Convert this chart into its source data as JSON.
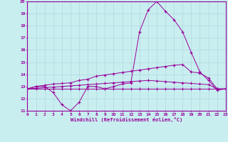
{
  "xlabel": "Windchill (Refroidissement éolien,°C)",
  "xlim": [
    0,
    23
  ],
  "ylim": [
    11,
    20
  ],
  "yticks": [
    11,
    12,
    13,
    14,
    15,
    16,
    17,
    18,
    19,
    20
  ],
  "xticks": [
    0,
    1,
    2,
    3,
    4,
    5,
    6,
    7,
    8,
    9,
    10,
    11,
    12,
    13,
    14,
    15,
    16,
    17,
    18,
    19,
    20,
    21,
    22,
    23
  ],
  "bg_color": "#c8eef0",
  "grid_color": "#b0d8dc",
  "line_color": "#990099",
  "line1_x": [
    0,
    1,
    2,
    3,
    4,
    5,
    6,
    7,
    8,
    9,
    10,
    11,
    12,
    13,
    14,
    15,
    16,
    17,
    18,
    19,
    20,
    21,
    22,
    23
  ],
  "line1_y": [
    12.8,
    13.0,
    13.0,
    12.5,
    11.5,
    11.0,
    11.7,
    13.0,
    13.0,
    12.8,
    13.0,
    13.2,
    13.3,
    17.5,
    19.3,
    20.0,
    19.2,
    18.5,
    17.5,
    15.8,
    14.2,
    13.5,
    12.7,
    12.8
  ],
  "line2_x": [
    0,
    1,
    2,
    3,
    4,
    5,
    6,
    7,
    8,
    9,
    10,
    11,
    12,
    13,
    14,
    15,
    16,
    17,
    18,
    19,
    20,
    21,
    22,
    23
  ],
  "line2_y": [
    12.8,
    13.0,
    13.1,
    13.2,
    13.25,
    13.3,
    13.5,
    13.6,
    13.85,
    13.95,
    14.05,
    14.15,
    14.25,
    14.35,
    14.45,
    14.55,
    14.65,
    14.75,
    14.8,
    14.2,
    14.1,
    13.7,
    12.8,
    12.8
  ],
  "line3_x": [
    0,
    1,
    2,
    3,
    4,
    5,
    6,
    7,
    8,
    9,
    10,
    11,
    12,
    13,
    14,
    15,
    16,
    17,
    18,
    19,
    20,
    21,
    22,
    23
  ],
  "line3_y": [
    12.8,
    12.85,
    12.9,
    12.95,
    13.0,
    13.05,
    13.1,
    13.15,
    13.2,
    13.25,
    13.3,
    13.35,
    13.4,
    13.45,
    13.5,
    13.45,
    13.4,
    13.35,
    13.3,
    13.25,
    13.2,
    13.15,
    12.8,
    12.8
  ],
  "line4_x": [
    0,
    1,
    2,
    3,
    4,
    5,
    6,
    7,
    8,
    9,
    10,
    11,
    12,
    13,
    14,
    15,
    16,
    17,
    18,
    19,
    20,
    21,
    22,
    23
  ],
  "line4_y": [
    12.8,
    12.8,
    12.8,
    12.8,
    12.8,
    12.8,
    12.8,
    12.8,
    12.8,
    12.8,
    12.8,
    12.8,
    12.8,
    12.8,
    12.8,
    12.8,
    12.8,
    12.8,
    12.8,
    12.8,
    12.8,
    12.8,
    12.8,
    12.8
  ]
}
